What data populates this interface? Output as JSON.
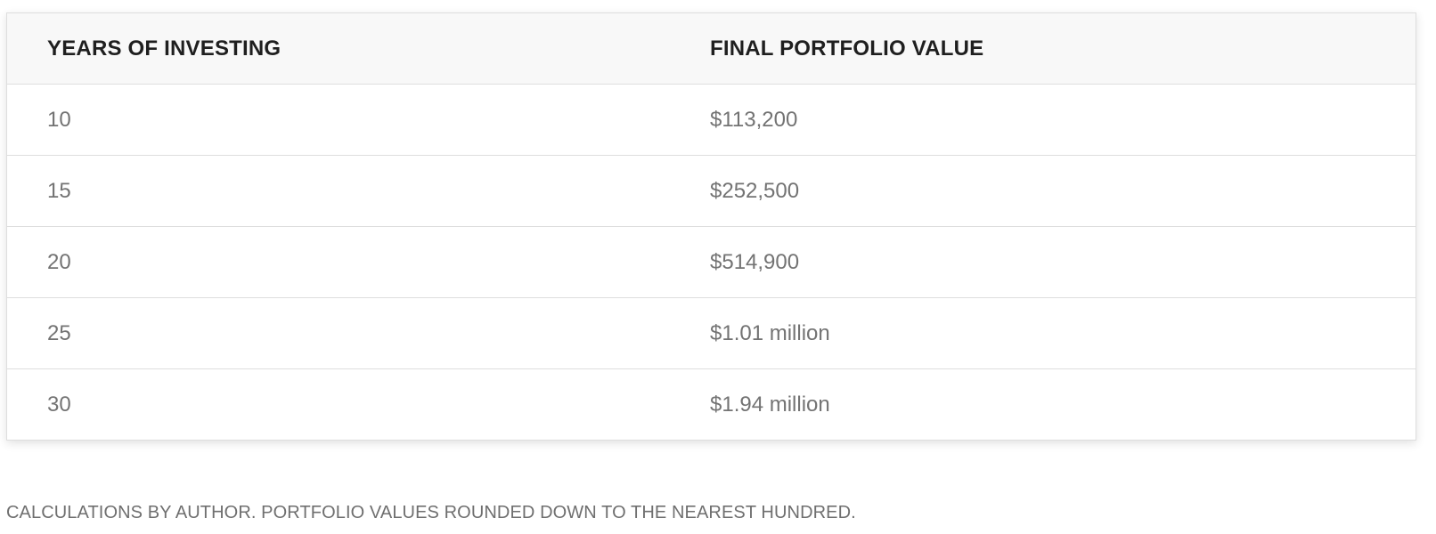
{
  "table": {
    "headers": [
      "YEARS OF INVESTING",
      "FINAL PORTFOLIO VALUE"
    ],
    "rows": [
      [
        "10",
        "$113,200"
      ],
      [
        "15",
        "$252,500"
      ],
      [
        "20",
        "$514,900"
      ],
      [
        "25",
        "$1.01 million"
      ],
      [
        "30",
        "$1.94 million"
      ]
    ]
  },
  "caption": "CALCULATIONS BY AUTHOR. PORTFOLIO VALUES ROUNDED DOWN TO THE NEAREST HUNDRED."
}
